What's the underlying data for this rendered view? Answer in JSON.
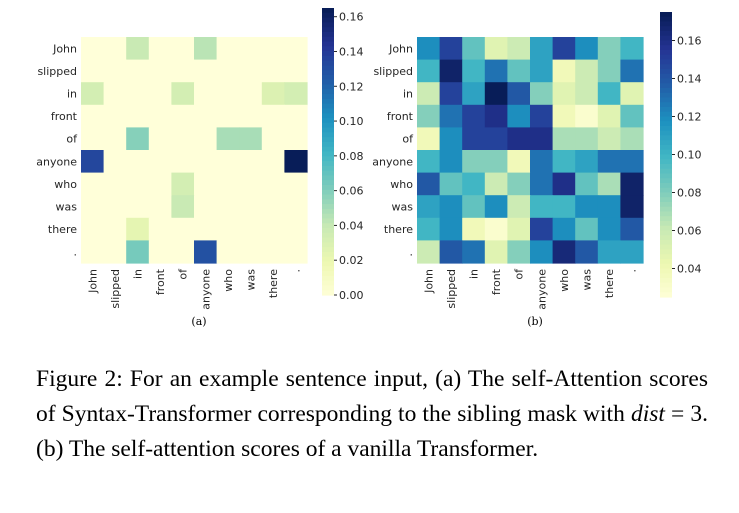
{
  "figure": {
    "tokens": [
      "John",
      "slipped",
      "in",
      "front",
      "of",
      "anyone",
      "who",
      "was",
      "there",
      "."
    ],
    "palette": [
      "#ffffd9",
      "#edf8b1",
      "#c7e9b4",
      "#7fcdbb",
      "#41b6c4",
      "#1d91c0",
      "#225ea8",
      "#253494",
      "#081d58"
    ],
    "panels": [
      {
        "sublabel": "(a)",
        "colorbar_ticks": [
          "0.16",
          "0.14",
          "0.12",
          "0.10",
          "0.08",
          "0.06",
          "0.04",
          "0.02",
          "0.00"
        ],
        "colorbar_tick_values": [
          0.16,
          0.14,
          0.12,
          0.1,
          0.08,
          0.06,
          0.04,
          0.02,
          0.0
        ],
        "vmin": 0.0,
        "vmax": 0.165,
        "matrix": [
          [
            0,
            0,
            0.04,
            0,
            0,
            0.045,
            0,
            0,
            0,
            0
          ],
          [
            0,
            0,
            0,
            0,
            0,
            0,
            0,
            0,
            0,
            0
          ],
          [
            0.035,
            0,
            0,
            0,
            0.035,
            0,
            0,
            0,
            0.03,
            0.035
          ],
          [
            0,
            0,
            0,
            0,
            0,
            0,
            0,
            0,
            0,
            0
          ],
          [
            0,
            0,
            0.06,
            0,
            0,
            0,
            0.05,
            0.05,
            0,
            0
          ],
          [
            0.135,
            0,
            0,
            0,
            0,
            0,
            0,
            0,
            0,
            0.165
          ],
          [
            0,
            0,
            0,
            0,
            0.035,
            0,
            0,
            0,
            0,
            0
          ],
          [
            0,
            0,
            0,
            0,
            0.04,
            0,
            0,
            0,
            0,
            0
          ],
          [
            0,
            0,
            0.025,
            0,
            0,
            0,
            0,
            0,
            0,
            0
          ],
          [
            0,
            0,
            0.065,
            0,
            0,
            0.13,
            0,
            0,
            0,
            0
          ]
        ]
      },
      {
        "sublabel": "(b)",
        "colorbar_ticks": [
          "0.16",
          "0.14",
          "0.12",
          "0.10",
          "0.08",
          "0.06",
          "0.04"
        ],
        "colorbar_tick_values": [
          0.16,
          0.14,
          0.12,
          0.1,
          0.08,
          0.06,
          0.04
        ],
        "vmin": 0.025,
        "vmax": 0.175,
        "matrix": [
          [
            0.12,
            0.15,
            0.09,
            0.05,
            0.06,
            0.11,
            0.15,
            0.12,
            0.08,
            0.1
          ],
          [
            0.1,
            0.17,
            0.1,
            0.13,
            0.09,
            0.11,
            0.04,
            0.06,
            0.08,
            0.13
          ],
          [
            0.06,
            0.15,
            0.11,
            0.175,
            0.14,
            0.08,
            0.05,
            0.06,
            0.1,
            0.05
          ],
          [
            0.08,
            0.13,
            0.15,
            0.16,
            0.12,
            0.15,
            0.04,
            0.03,
            0.05,
            0.09
          ],
          [
            0.04,
            0.12,
            0.15,
            0.15,
            0.16,
            0.16,
            0.07,
            0.07,
            0.06,
            0.07
          ],
          [
            0.1,
            0.12,
            0.08,
            0.08,
            0.04,
            0.13,
            0.1,
            0.11,
            0.13,
            0.13
          ],
          [
            0.14,
            0.09,
            0.1,
            0.06,
            0.08,
            0.13,
            0.16,
            0.09,
            0.07,
            0.17
          ],
          [
            0.11,
            0.12,
            0.09,
            0.12,
            0.06,
            0.1,
            0.1,
            0.12,
            0.12,
            0.17
          ],
          [
            0.1,
            0.12,
            0.04,
            0.03,
            0.05,
            0.15,
            0.12,
            0.09,
            0.12,
            0.14
          ],
          [
            0.06,
            0.14,
            0.13,
            0.05,
            0.08,
            0.12,
            0.165,
            0.14,
            0.11,
            0.11
          ]
        ]
      }
    ]
  },
  "caption": {
    "figure_label": "Figure 2:",
    "text_a": "For an example sentence input, (a) The self-Attention scores of Syntax-Transformer corresponding to the sibling mask with",
    "dist_symbol": "dist",
    "equals": "=",
    "dist_value": "3.",
    "text_b": "(b) The self-attention scores of a vanilla Transformer."
  }
}
